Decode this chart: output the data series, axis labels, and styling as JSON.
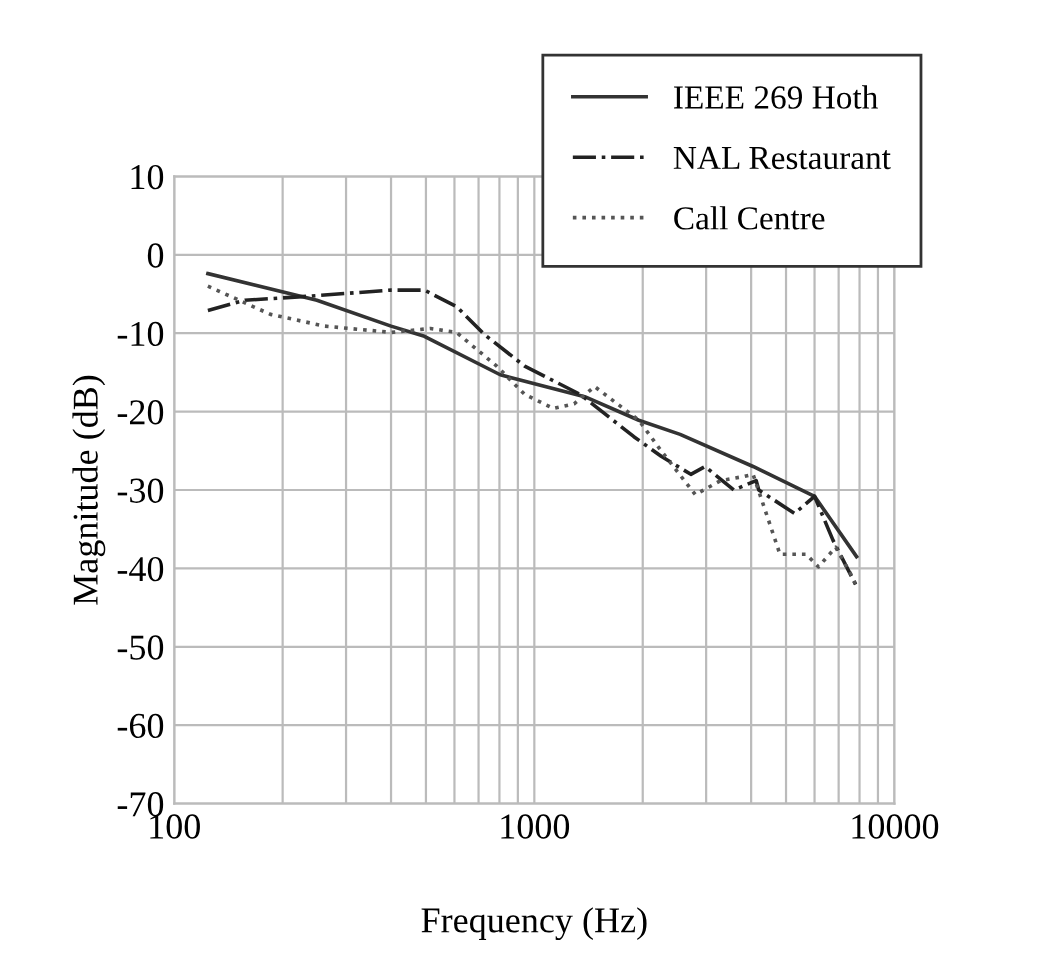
{
  "chart_data": {
    "type": "line",
    "xlabel": "Frequency (Hz)",
    "ylabel": "Magnitude (dB)",
    "log": "x",
    "grid": true,
    "legend": "top right",
    "xlim": [
      100,
      10000
    ],
    "ylim": [
      -70,
      10
    ],
    "xticks": [
      100,
      {
        "value": 200,
        "label": null
      },
      {
        "value": 300,
        "label": null
      },
      {
        "value": 400,
        "label": null
      },
      {
        "value": 500,
        "label": null
      },
      {
        "value": 600,
        "label": null
      },
      {
        "value": 700,
        "label": null
      },
      {
        "value": 800,
        "label": null
      },
      {
        "value": 900,
        "label": null
      },
      1000,
      {
        "value": 2000,
        "label": null
      },
      {
        "value": 3000,
        "label": null
      },
      {
        "value": 4000,
        "label": null
      },
      {
        "value": 5000,
        "label": null
      },
      {
        "value": 6000,
        "label": null
      },
      {
        "value": 7000,
        "label": null
      },
      {
        "value": 8000,
        "label": null
      },
      {
        "value": 9000,
        "label": null
      },
      10000
    ],
    "yticks": [
      -70,
      -60,
      -50,
      -40,
      -30,
      -20,
      -10,
      0,
      10
    ],
    "series": [
      {
        "name": "IEEE 269 Hoth",
        "color": "#333333",
        "line_style": "solid",
        "x": [
          124,
          249,
          400,
          495,
          804,
          1380,
          1950,
          2540,
          4050,
          6000,
          7850
        ],
        "values": [
          -2.4,
          -5.8,
          -9.1,
          -10.4,
          -15.3,
          -18.1,
          -21.1,
          -22.9,
          -27,
          -30.8,
          -38.5
        ]
      },
      {
        "name": "NAL Restaurant",
        "color": "#222222",
        "line_style": "dashdot",
        "x": [
          124,
          157,
          233,
          400,
          495,
          608,
          728,
          940,
          1340,
          1890,
          2250,
          2720,
          2980,
          3580,
          4130,
          4200,
          5280,
          6000,
          6750,
          7850
        ],
        "values": [
          -7.1,
          -5.8,
          -5.3,
          -4.5,
          -4.5,
          -6.6,
          -10.2,
          -14.2,
          -17.8,
          -23.2,
          -25.7,
          -28,
          -27,
          -30,
          -28.8,
          -30,
          -33,
          -30.8,
          -36.4,
          -42.3
        ]
      },
      {
        "name": "Call Centre",
        "color": "#555555",
        "line_style": "dotted",
        "x": [
          124,
          185,
          262,
          400,
          515,
          608,
          786,
          940,
          1130,
          1290,
          1470,
          1950,
          2250,
          2800,
          3290,
          3800,
          4050,
          4340,
          4810,
          5690,
          6150,
          6870,
          7620,
          7850
        ],
        "values": [
          -4,
          -7.6,
          -9.1,
          -9.9,
          -9.4,
          -9.9,
          -14.2,
          -17.8,
          -19.6,
          -19,
          -16.8,
          -21.1,
          -25,
          -30.6,
          -28.8,
          -28.3,
          -28,
          -32.1,
          -38.2,
          -38.2,
          -39.8,
          -37.3,
          -41,
          -42.3
        ]
      }
    ]
  }
}
